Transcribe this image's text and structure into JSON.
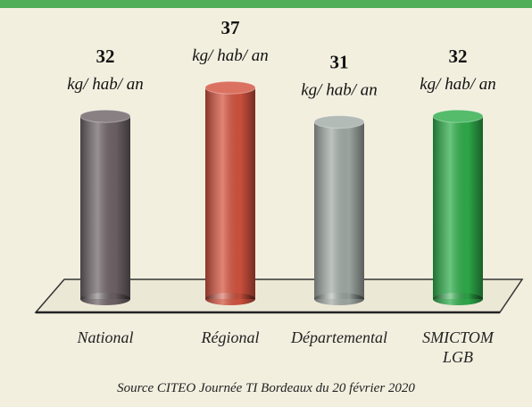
{
  "chart_data": {
    "type": "bar",
    "categories": [
      "National",
      "Régional",
      "Départemental",
      "SMICTOM\nLGB"
    ],
    "values": [
      32,
      37,
      31,
      32
    ],
    "unit": "kg/ hab/ an",
    "colors": [
      "#6f6468",
      "#d4533f",
      "#a3aca7",
      "#2fae4b"
    ],
    "source": "Source CITEO Journée TI Bordeaux du 20 février 2020"
  }
}
